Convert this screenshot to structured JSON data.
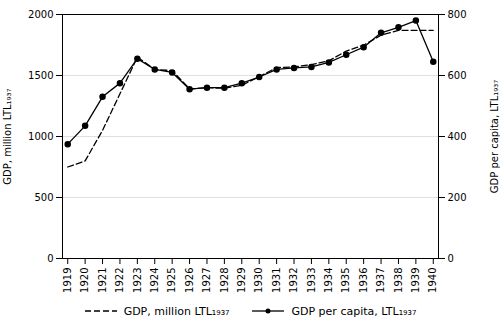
{
  "chart_data": {
    "type": "line",
    "x": [
      1919,
      1920,
      1921,
      1922,
      1923,
      1924,
      1925,
      1926,
      1927,
      1928,
      1929,
      1930,
      1931,
      1932,
      1933,
      1934,
      1935,
      1936,
      1937,
      1938,
      1939,
      1940
    ],
    "xlim": [
      1918.7,
      1940.3
    ],
    "xticks": [
      1919,
      1920,
      1921,
      1922,
      1923,
      1924,
      1925,
      1926,
      1927,
      1928,
      1929,
      1930,
      1931,
      1932,
      1933,
      1934,
      1935,
      1936,
      1937,
      1938,
      1939,
      1940
    ],
    "ylim": [
      0,
      2000
    ],
    "yticks": [
      0,
      500,
      1000,
      1500,
      2000
    ],
    "y2lim": [
      0,
      800
    ],
    "y2ticks": [
      0,
      200,
      400,
      600,
      800
    ],
    "ylabel": "GDP, million LTL₁₉₃₇",
    "y2label": "GDP per capita, LTL₁₉₃₇",
    "grid": true,
    "legend": "bottom",
    "series": [
      {
        "name": "GDP, million LTL₁₉₃₇",
        "color": "#000000",
        "line_style": "dashed",
        "values": [
          750,
          800,
          1050,
          1350,
          1650,
          1550,
          1540,
          1390,
          1400,
          1395,
          1420,
          1490,
          1565,
          1570,
          1590,
          1620,
          1700,
          1750,
          1830,
          1870,
          1870,
          1870
        ]
      },
      {
        "name": "GDP per capita, LTL₁₉₃₇",
        "color": "#000000",
        "line_style": "solid",
        "marker": "circle",
        "axis": "y2",
        "values": [
          375,
          435,
          530,
          575,
          655,
          620,
          610,
          555,
          560,
          560,
          575,
          595,
          620,
          625,
          628,
          643,
          668,
          693,
          740,
          758,
          780,
          645
        ]
      }
    ]
  }
}
